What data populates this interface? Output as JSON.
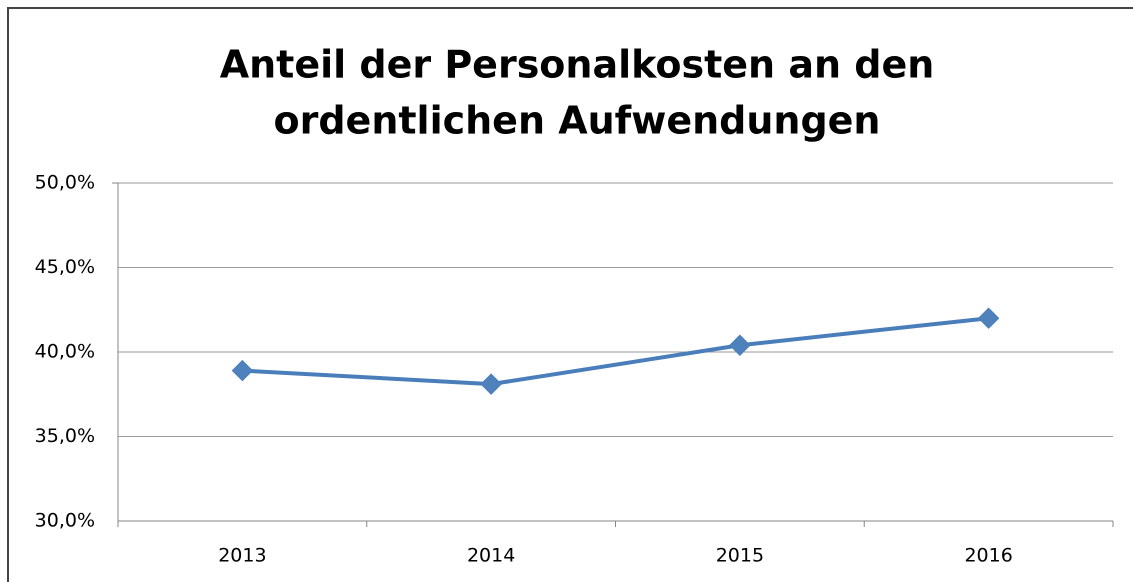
{
  "chart_data": {
    "type": "line",
    "title": [
      "Anteil der Personalkosten an den",
      "ordentlichen Aufwendungen"
    ],
    "categories": [
      "2013",
      "2014",
      "2015",
      "2016"
    ],
    "series": [
      {
        "name": "Anteil",
        "color": "#4a7ebb",
        "values": [
          38.9,
          38.1,
          40.4,
          42.0
        ]
      }
    ],
    "ylim": [
      30,
      50
    ],
    "yticks": [
      {
        "value": 30,
        "label": "30,0%"
      },
      {
        "value": 35,
        "label": "35,0%"
      },
      {
        "value": 40,
        "label": "40,0%"
      },
      {
        "value": 45,
        "label": "45,0%"
      },
      {
        "value": 50,
        "label": "50,0%"
      }
    ],
    "grid": true
  }
}
